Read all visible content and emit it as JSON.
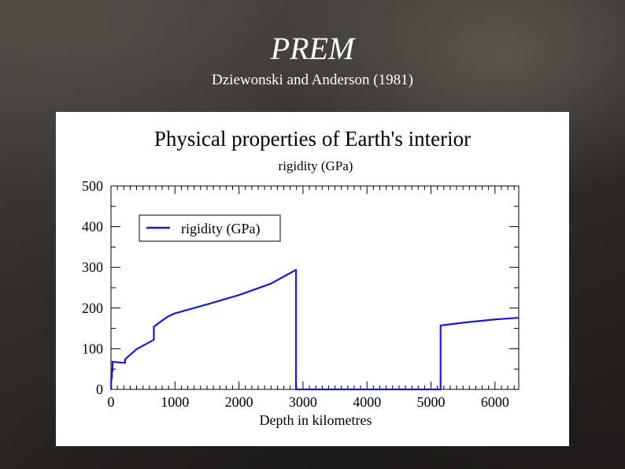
{
  "slide": {
    "title": "PREM",
    "subtitle": "Dziewonski and Anderson (1981)"
  },
  "colors": {
    "series": "#1a1acc",
    "axis": "#000000",
    "background_panel": "#ffffff"
  },
  "chart_data": {
    "type": "line",
    "title": "Physical properties of Earth's interior",
    "subtitle": "rigidity (GPa)",
    "xlabel": "Depth in kilometres",
    "ylabel": "",
    "xlim": [
      0,
      6371
    ],
    "ylim": [
      0,
      500
    ],
    "xticks": [
      0,
      1000,
      2000,
      3000,
      4000,
      5000,
      6000
    ],
    "xtick_labels": [
      "0",
      "1000",
      "2000",
      "3000",
      "4000",
      "5000",
      "6000"
    ],
    "yticks": [
      0,
      100,
      200,
      300,
      400,
      500
    ],
    "ytick_labels": [
      "0",
      "100",
      "200",
      "300",
      "400",
      "500"
    ],
    "grid": false,
    "legend": {
      "position": "top-left",
      "entries": [
        "rigidity (GPa)"
      ]
    },
    "series": [
      {
        "name": "rigidity (GPa)",
        "x": [
          0,
          3,
          3,
          15,
          15,
          24,
          24,
          80,
          220,
          220,
          400,
          670,
          670,
          771,
          900,
          1000,
          1500,
          2000,
          2500,
          2741,
          2891,
          2891,
          5150,
          5150,
          5500,
          6000,
          6371
        ],
        "y": [
          0,
          0,
          27,
          27,
          44,
          44,
          68,
          67,
          65,
          74,
          99,
          122,
          154,
          166,
          180,
          187,
          209,
          232,
          260,
          281,
          294,
          0,
          0,
          157,
          164,
          172,
          176
        ]
      }
    ]
  }
}
